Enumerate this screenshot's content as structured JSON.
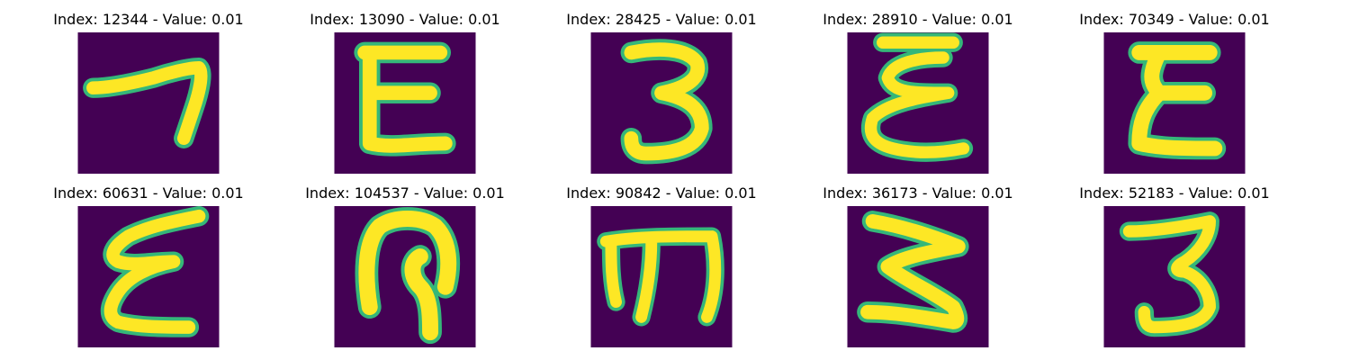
{
  "figure": {
    "panels": [
      {
        "title": "Index: 12344 - Value: 0.01",
        "glyph": "seven-like-stroke"
      },
      {
        "title": "Index: 13090 - Value: 0.01",
        "glyph": "E-like-stroke"
      },
      {
        "title": "Index: 28425 - Value: 0.01",
        "glyph": "three-like-stroke"
      },
      {
        "title": "Index: 28910 - Value: 0.01",
        "glyph": "epsilon-like-stroke"
      },
      {
        "title": "Index: 70349 - Value: 0.01",
        "glyph": "sigma-like-stroke"
      },
      {
        "title": "Index: 60631 - Value: 0.01",
        "glyph": "slanted-epsilon-stroke"
      },
      {
        "title": "Index: 104537 - Value: 0.01",
        "glyph": "loop-with-stem-stroke"
      },
      {
        "title": "Index: 90842 - Value: 0.01",
        "glyph": "m-like-stroke"
      },
      {
        "title": "Index: 36173 - Value: 0.01",
        "glyph": "z-like-three-stroke"
      },
      {
        "title": "Index: 52183 - Value: 0.01",
        "glyph": "three-like-stroke-2"
      }
    ],
    "colors": {
      "background": "#440154",
      "stroke_core": "#fde725",
      "stroke_edge": "#35b779"
    }
  }
}
